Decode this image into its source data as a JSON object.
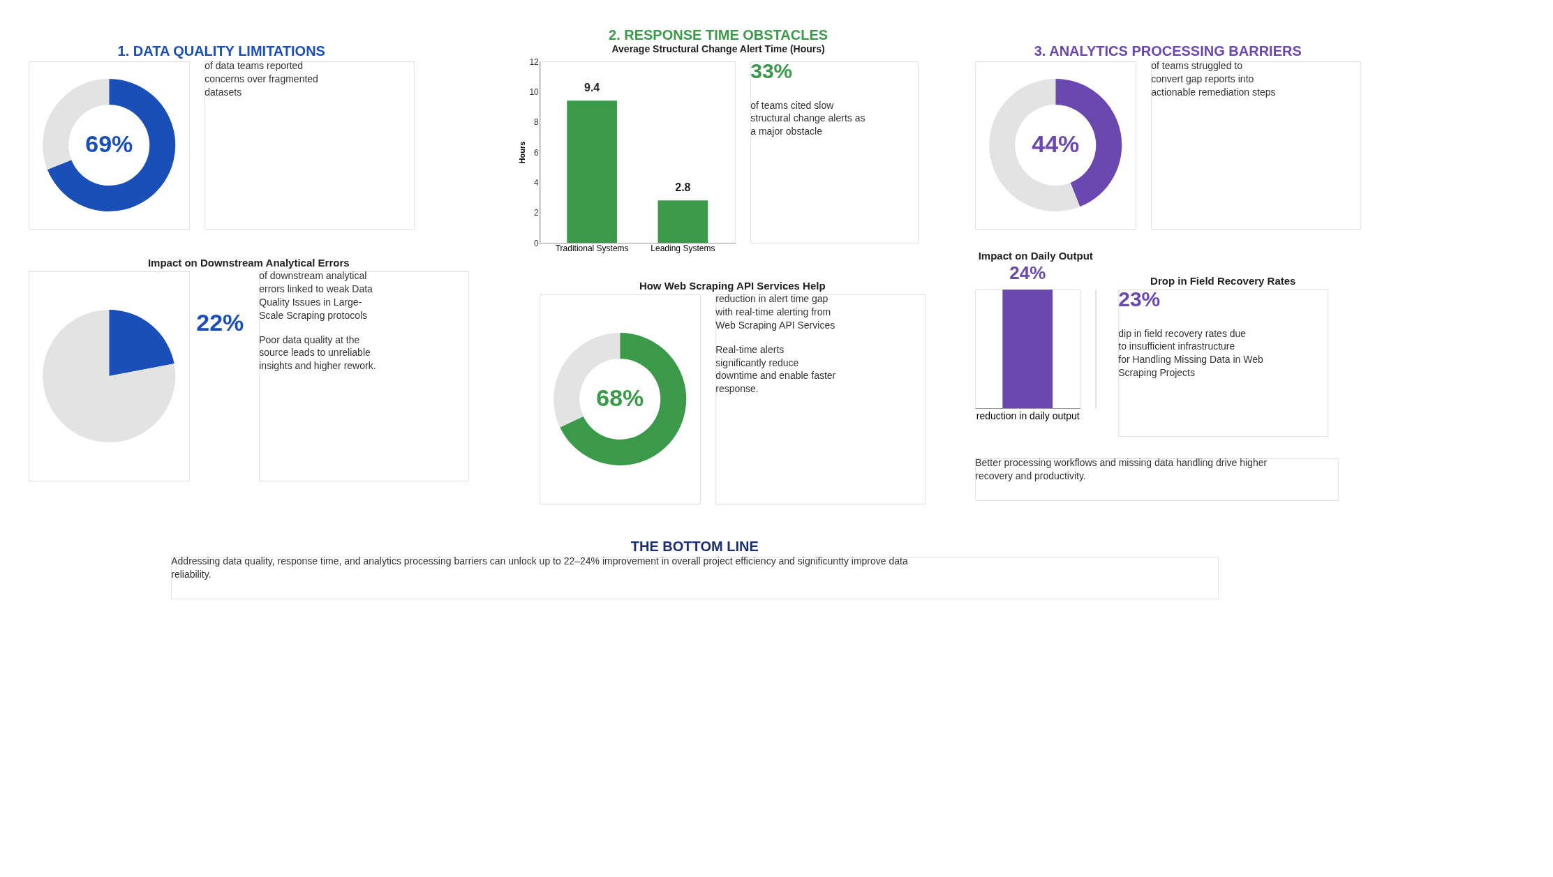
{
  "chart_data": [
    {
      "type": "donut",
      "title": "1. DATA QUALITY LIMITATIONS",
      "categories": [
        null,
        null
      ],
      "values": [
        69,
        31
      ],
      "colors": [
        "#1a4fba",
        "#e3e3e3"
      ],
      "value_labels": [
        "69%",
        null
      ],
      "annotations": [
        "of data teams reported concerns over fragmented datasets"
      ]
    },
    {
      "type": "pie",
      "title": "Impact on Downstream Analytical Errors",
      "categories": [
        null,
        null
      ],
      "values": [
        22,
        78
      ],
      "colors": [
        "#1a4fba",
        "#e3e3e3"
      ],
      "value_labels": [
        "22%",
        null
      ],
      "annotations": [
        "of downstream analytical errors linked to weak Data Quality Issues in Large-Scale Scraping protocols",
        "Poor data quality at the source leads to unreliable insights and higher rework."
      ]
    },
    {
      "type": "bar",
      "title": "2. RESPONSE TIME OBSTACLES",
      "subtitle": "Average Structural Change Alert Time (Hours)",
      "categories": [
        "Traditional Systems",
        "Leading Systems"
      ],
      "values": [
        9.4,
        2.8
      ],
      "color": "#3a9a4a",
      "ylabel": "Hours",
      "ylim": [
        0,
        12
      ],
      "yticks": [
        0,
        2,
        4,
        6,
        8,
        10,
        12
      ],
      "data_labels": true,
      "annotations": [
        "33%",
        "of teams cited slow structural change alerts as a major obstacle"
      ]
    },
    {
      "type": "donut",
      "title": "How Web Scraping API Services Help",
      "categories": [
        null,
        null
      ],
      "values": [
        68,
        32
      ],
      "colors": [
        "#3a9a4a",
        "#e3e3e3"
      ],
      "value_labels": [
        "68%",
        null
      ],
      "annotations": [
        "reduction in alert time gap with real-time alerting from Web Scraping API Services",
        "Real-time alerts significantly reduce downtime and enable faster response."
      ]
    },
    {
      "type": "donut",
      "title": "3. ANALYTICS PROCESSING BARRIERS",
      "categories": [
        null,
        null
      ],
      "values": [
        44,
        56
      ],
      "colors": [
        "#6a48b0",
        "#e3e3e3"
      ],
      "value_labels": [
        "44%",
        null
      ],
      "annotations": [
        "of teams struggled to convert gap reports into actionable remediation steps"
      ]
    },
    {
      "type": "bar",
      "title": "Impact on Daily Output",
      "categories": [
        null
      ],
      "values": [
        24
      ],
      "color": "#6a48b0",
      "value_labels": [
        "24%"
      ],
      "xlabel": "reduction in daily output"
    },
    {
      "type": "other",
      "title": "Drop in Field Recovery Rates",
      "color": "#6a48b0",
      "annotations": [
        "23%",
        "dip in field recovery rates due to insufficient infrastructure for Handling Missing Data in Web Scraping Projects"
      ]
    },
    {
      "type": "other",
      "color": "#6a48b0",
      "annotations": [
        "Better processing workflows and missing data handling drive higher recovery and productivity."
      ]
    },
    {
      "type": "other",
      "title": "THE BOTTOM LINE",
      "color": "#1a2f6e",
      "annotations": [
        "Addressing data quality, response time, and analytics processing barriers can unlock up to 22–24% improvement in overall project efficiency and significuntty improve data reliability."
      ]
    }
  ]
}
